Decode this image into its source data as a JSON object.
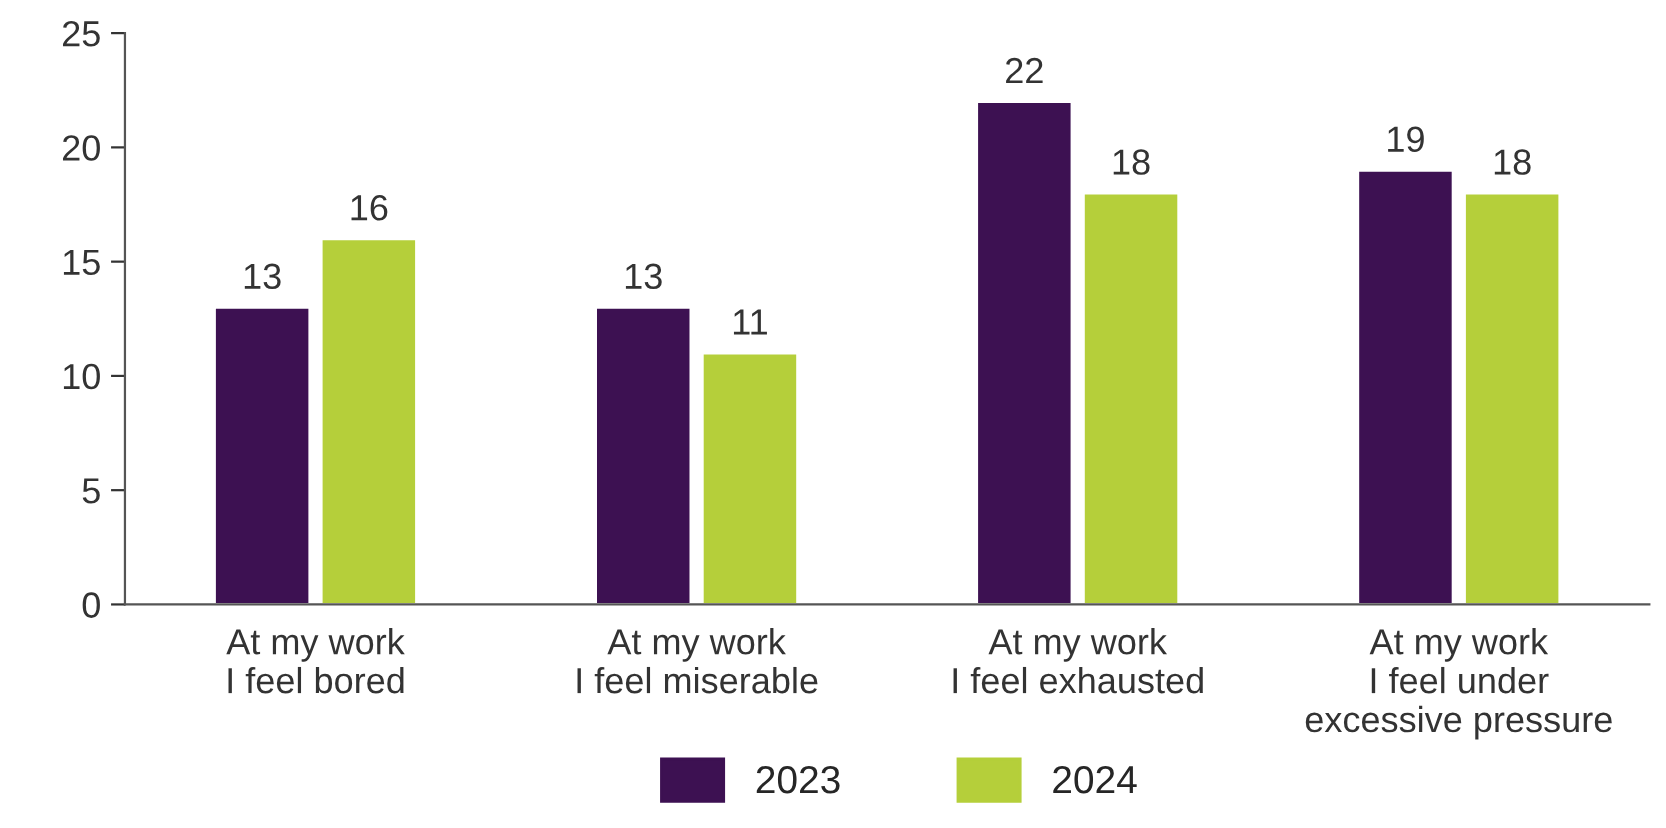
{
  "chart_data": {
    "type": "bar",
    "categories": [
      "At my work\nI feel bored",
      "At my work\nI feel miserable",
      "At my work\nI feel exhausted",
      "At my work\nI feel under\nexcessive pressure"
    ],
    "series": [
      {
        "name": "2023",
        "color": "#3d1152",
        "values": [
          13,
          13,
          22,
          19
        ]
      },
      {
        "name": "2024",
        "color": "#b5cf3a",
        "values": [
          16,
          11,
          18,
          18
        ]
      }
    ],
    "ylim": [
      0,
      25
    ],
    "yticks": [
      0,
      5,
      10,
      15,
      20,
      25
    ],
    "data_labels": true,
    "grid": false,
    "legend": "bottom"
  }
}
